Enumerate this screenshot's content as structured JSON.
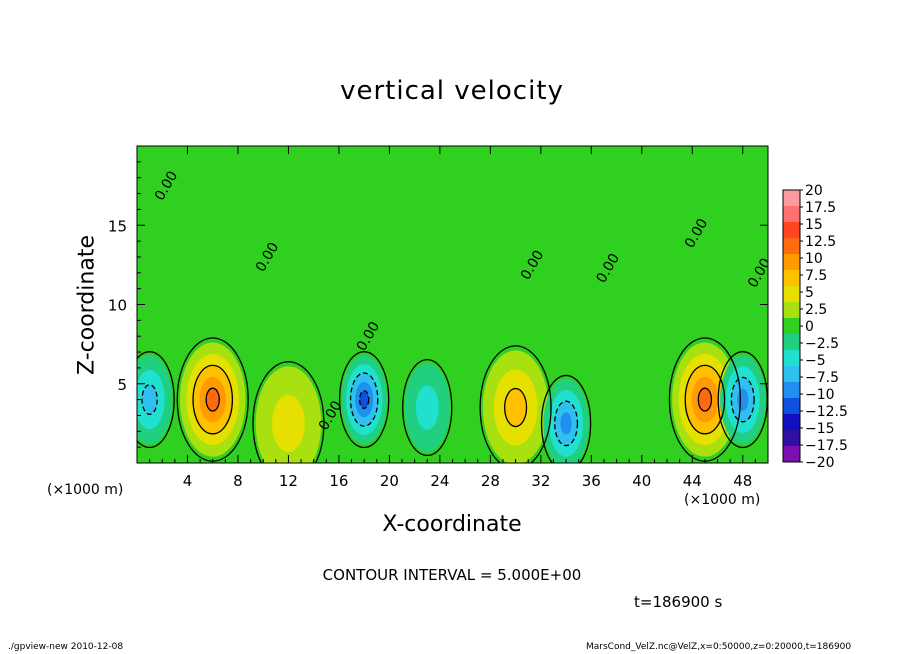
{
  "chart_data": {
    "type": "heatmap",
    "title": "vertical velocity",
    "xlabel": "X-coordinate",
    "ylabel": "Z-coordinate",
    "x_unit": "(×1000 m)",
    "xlim": [
      0,
      50
    ],
    "ylim": [
      0,
      20
    ],
    "x_ticks": [
      4,
      8,
      12,
      16,
      20,
      24,
      28,
      32,
      36,
      40,
      44,
      48
    ],
    "y_ticks": [
      5,
      10,
      15
    ],
    "colorbar": {
      "min": -20,
      "max": 20,
      "labels": [
        "20",
        "17.5",
        "15",
        "12.5",
        "10",
        "7.5",
        "5",
        "2.5",
        "0",
        "−2.5",
        "−5",
        "−7.5",
        "−10",
        "−12.5",
        "−15",
        "−17.5",
        "−20"
      ],
      "colors": [
        "#ff9aa0",
        "#ff7070",
        "#ff4420",
        "#ff6a10",
        "#ff9a00",
        "#ffc000",
        "#e6e000",
        "#a8e010",
        "#30d020",
        "#20d080",
        "#20e0d0",
        "#30c0f0",
        "#2090f0",
        "#1050e0",
        "#1010c0",
        "#3010a0",
        "#7a10b0"
      ]
    },
    "contour_label": "0.00",
    "features": [
      {
        "kind": "updraft",
        "x": 6,
        "z": 4,
        "peak": 12.5
      },
      {
        "kind": "updraft",
        "x": 45,
        "z": 4,
        "peak": 12.5
      },
      {
        "kind": "updraft",
        "x": 30,
        "z": 3.5,
        "peak": 7.5
      },
      {
        "kind": "updraft",
        "x": 12,
        "z": 2.5,
        "peak": 5
      },
      {
        "kind": "downdraft",
        "x": 1,
        "z": 4,
        "peak": -7.5
      },
      {
        "kind": "downdraft",
        "x": 18,
        "z": 4,
        "peak": -12.5
      },
      {
        "kind": "downdraft",
        "x": 23,
        "z": 3.5,
        "peak": -5
      },
      {
        "kind": "downdraft",
        "x": 34,
        "z": 2.5,
        "peak": -10
      },
      {
        "kind": "downdraft",
        "x": 48,
        "z": 4,
        "peak": -10
      }
    ]
  },
  "contour_interval_text": "CONTOUR INTERVAL = 5.000E+00",
  "time_text": "t=186900 s",
  "footer_left": "./gpview-new   2010-12-08",
  "footer_right": "MarsCond_VelZ.nc@VelZ,x=0:50000,z=0:20000,t=186900"
}
